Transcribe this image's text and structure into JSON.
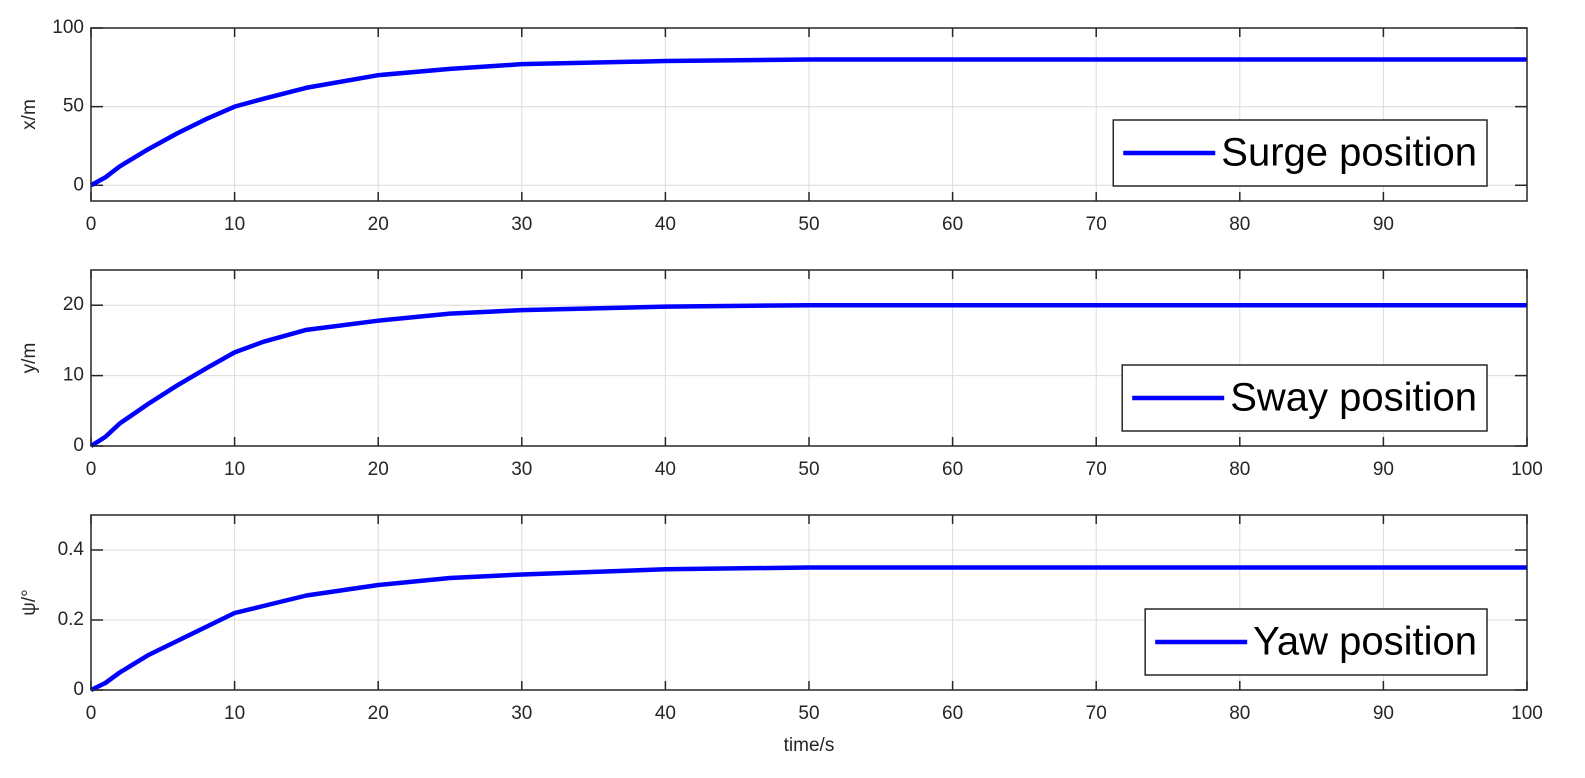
{
  "chart_data": [
    {
      "type": "line",
      "ylabel": "x/m",
      "legend": "lower right",
      "grid": true,
      "xlim": [
        0,
        100
      ],
      "xticks": [
        0,
        10,
        20,
        30,
        40,
        50,
        60,
        70,
        80,
        90
      ],
      "ylim": [
        -10,
        100
      ],
      "yticks": [
        0,
        50,
        100
      ],
      "x": [
        0,
        1,
        2,
        4,
        6,
        8,
        10,
        12,
        15,
        20,
        25,
        30,
        40,
        50,
        60,
        70,
        80,
        90,
        100
      ],
      "series": [
        {
          "name": "Surge position",
          "color": "#0000ff",
          "values": [
            0,
            5,
            12,
            23,
            33,
            42,
            50,
            55,
            62,
            70,
            74,
            77,
            79,
            80,
            80,
            80,
            80,
            80,
            80
          ]
        }
      ]
    },
    {
      "type": "line",
      "ylabel": "y/m",
      "legend": "lower right",
      "grid": true,
      "xlim": [
        0,
        100
      ],
      "xticks": [
        0,
        10,
        20,
        30,
        40,
        50,
        60,
        70,
        80,
        90,
        100
      ],
      "ylim": [
        0,
        25
      ],
      "yticks": [
        0,
        10,
        20
      ],
      "x": [
        0,
        1,
        2,
        4,
        6,
        8,
        10,
        12,
        15,
        20,
        25,
        30,
        40,
        50,
        60,
        70,
        80,
        90,
        100
      ],
      "series": [
        {
          "name": "Sway position",
          "color": "#0000ff",
          "values": [
            0,
            1.3,
            3.2,
            6,
            8.6,
            11,
            13.3,
            14.8,
            16.5,
            17.8,
            18.8,
            19.3,
            19.8,
            20,
            20,
            20,
            20,
            20,
            20
          ]
        }
      ]
    },
    {
      "type": "line",
      "ylabel": "ψ/°",
      "xlabel": "time/s",
      "legend": "lower right",
      "grid": true,
      "xlim": [
        0,
        100
      ],
      "xticks": [
        0,
        10,
        20,
        30,
        40,
        50,
        60,
        70,
        80,
        90,
        100
      ],
      "ylim": [
        0,
        0.5
      ],
      "yticks": [
        0,
        0.2,
        0.4
      ],
      "x": [
        0,
        1,
        2,
        4,
        6,
        8,
        10,
        12,
        15,
        20,
        25,
        30,
        40,
        50,
        60,
        70,
        80,
        90,
        100
      ],
      "series": [
        {
          "name": "Yaw position",
          "color": "#0000ff",
          "values": [
            0,
            0.02,
            0.05,
            0.1,
            0.14,
            0.18,
            0.22,
            0.24,
            0.27,
            0.3,
            0.32,
            0.33,
            0.345,
            0.35,
            0.35,
            0.35,
            0.35,
            0.35,
            0.35
          ]
        }
      ]
    }
  ]
}
